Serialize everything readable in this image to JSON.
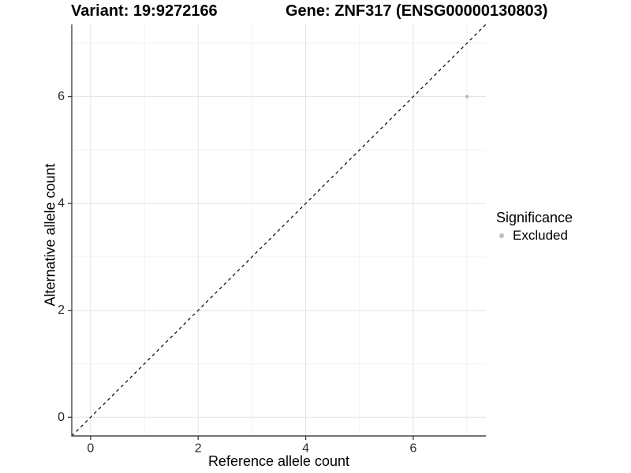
{
  "header": {
    "variant_title": "Variant: 19:9272166",
    "gene_title": "Gene: ZNF317 (ENSG00000130803)"
  },
  "legend": {
    "title": "Significance",
    "items": [
      {
        "label": "Excluded",
        "color": "#bdbdbd",
        "marker": "circle-icon"
      }
    ]
  },
  "colors": {
    "background": "#ffffff",
    "grid_major": "#e4e4e4",
    "grid_minor": "#f1f1f1",
    "axis_line": "#474747",
    "tick_mark": "#383838",
    "tick_label": "#2b2b2b",
    "point": "#bdbdbd",
    "reference_line": "#000000"
  },
  "chart_data": {
    "type": "scatter",
    "title": "Variant: 19:9272166 — Gene: ZNF317 (ENSG00000130803)",
    "xlabel": "Reference allele count",
    "ylabel": "Alternative allele count",
    "xlim": [
      -0.35,
      7.35
    ],
    "ylim": [
      -0.35,
      7.35
    ],
    "x_major_ticks": [
      0,
      2,
      4,
      6
    ],
    "x_tick_labels": [
      "0",
      "2",
      "4",
      "6"
    ],
    "y_major_ticks": [
      0,
      2,
      4,
      6
    ],
    "y_tick_labels": [
      "0",
      "2",
      "4",
      "6"
    ],
    "x_minor_gridlines": [
      1,
      3,
      5,
      7
    ],
    "y_minor_gridlines": [
      1,
      3,
      5,
      7
    ],
    "grid": "major+minor",
    "legend_position": "right",
    "series": [
      {
        "name": "Excluded",
        "color": "#bdbdbd",
        "points": [
          [
            7,
            6
          ]
        ]
      }
    ],
    "reference_line": {
      "style": "dashed",
      "slope": 1,
      "intercept": 0
    }
  }
}
